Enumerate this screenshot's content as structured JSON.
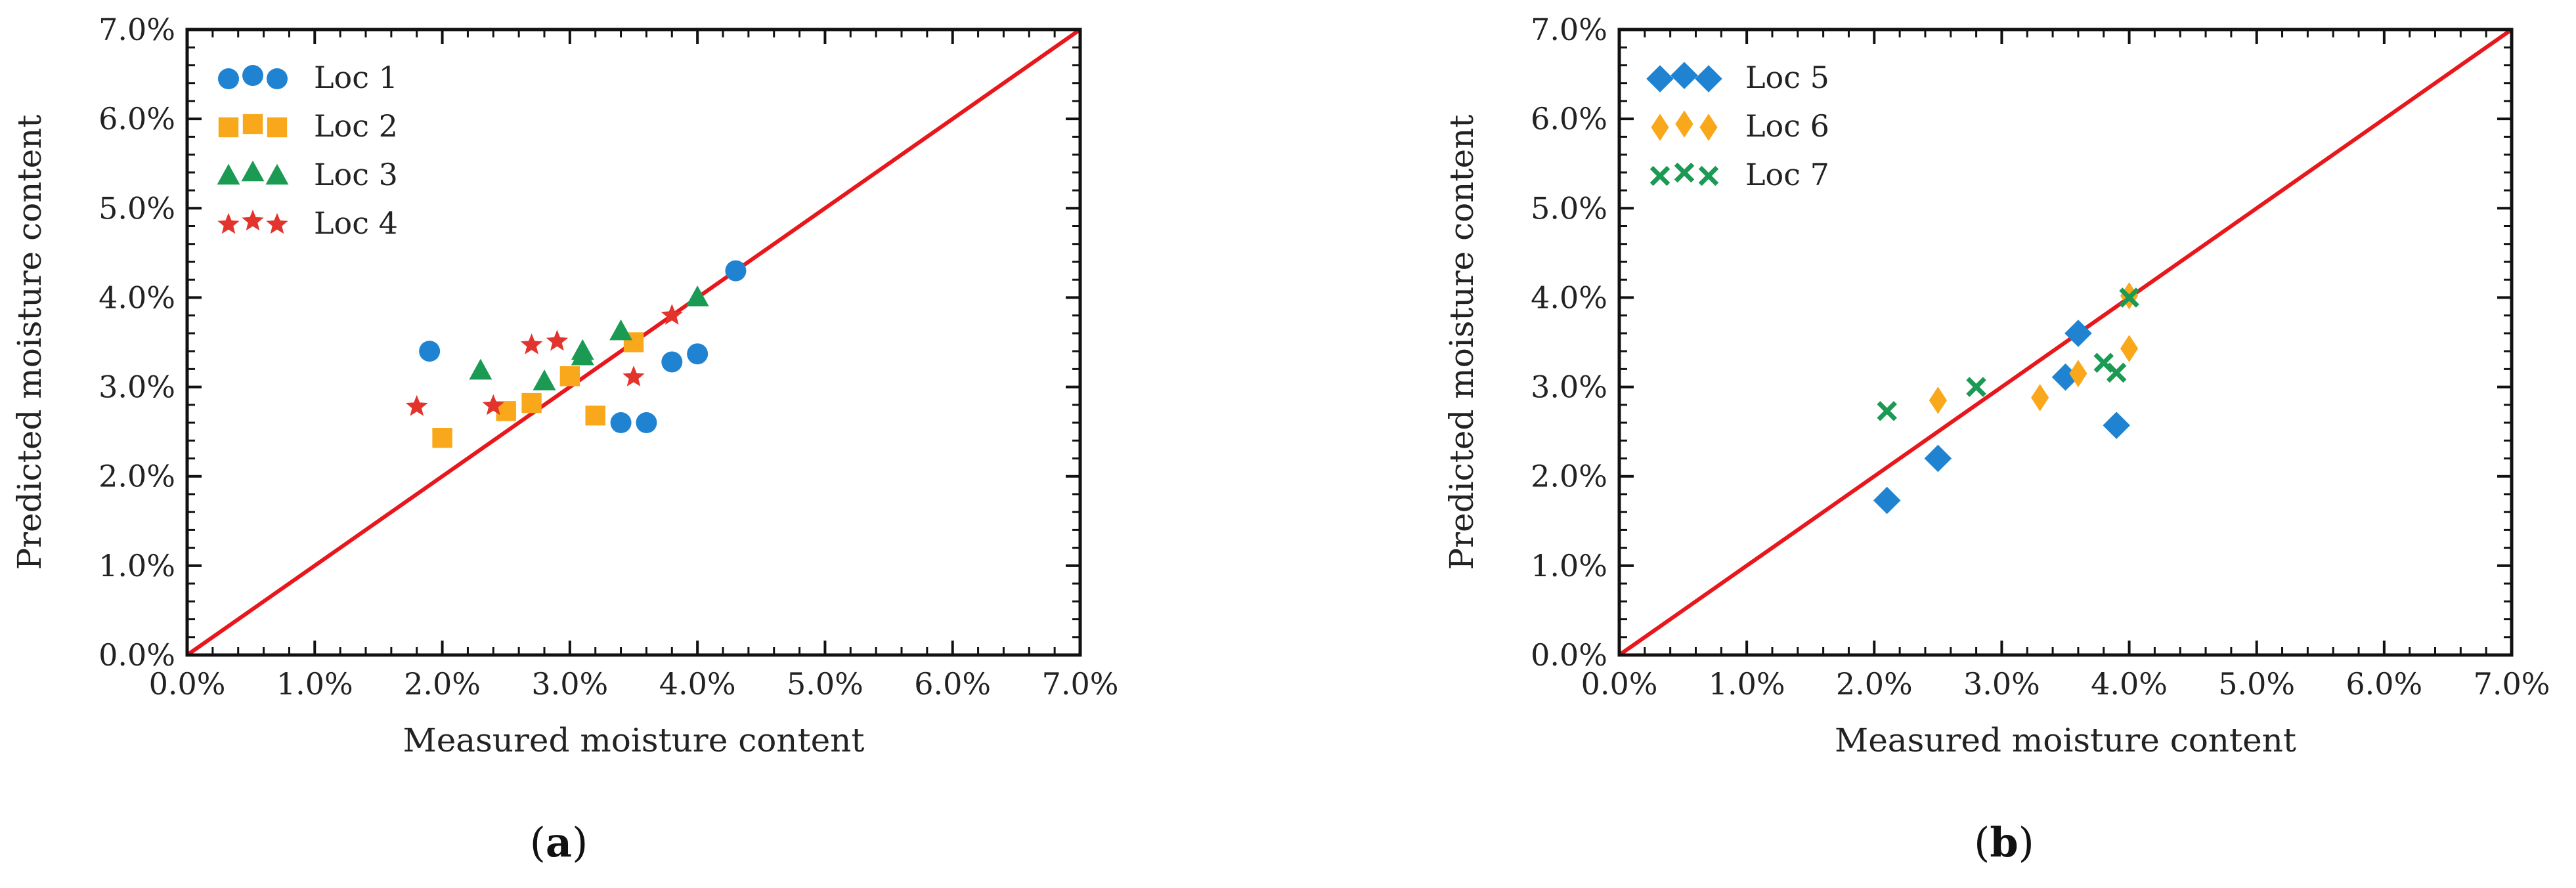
{
  "chart_data": [
    {
      "type": "scatter",
      "panel_label": "a",
      "xlabel": "Measured moisture content",
      "ylabel": "Predicted moisture content",
      "xlim": [
        0,
        0.07
      ],
      "ylim": [
        0,
        0.07
      ],
      "ticks": [
        0,
        0.01,
        0.02,
        0.03,
        0.04,
        0.05,
        0.06,
        0.07
      ],
      "tick_labels": [
        "0.0%",
        "1.0%",
        "2.0%",
        "3.0%",
        "4.0%",
        "5.0%",
        "6.0%",
        "7.0%"
      ],
      "reference_line": {
        "from": [
          0,
          0
        ],
        "to": [
          0.07,
          0.07
        ],
        "color": "#e8171c"
      },
      "legend_position": "top-left",
      "series": [
        {
          "name": "Loc 1",
          "marker": "circle",
          "color": "#1f83d2",
          "points": [
            [
              0.019,
              0.034
            ],
            [
              0.034,
              0.026
            ],
            [
              0.036,
              0.026
            ],
            [
              0.038,
              0.0328
            ],
            [
              0.04,
              0.0337
            ],
            [
              0.043,
              0.043
            ]
          ]
        },
        {
          "name": "Loc 2",
          "marker": "square",
          "color": "#f9a81b",
          "points": [
            [
              0.02,
              0.0243
            ],
            [
              0.025,
              0.0273
            ],
            [
              0.027,
              0.0282
            ],
            [
              0.03,
              0.0312
            ],
            [
              0.032,
              0.0268
            ],
            [
              0.035,
              0.035
            ]
          ]
        },
        {
          "name": "Loc 3",
          "marker": "triangle",
          "color": "#1b9a54",
          "points": [
            [
              0.023,
              0.0318
            ],
            [
              0.028,
              0.0306
            ],
            [
              0.031,
              0.0334
            ],
            [
              0.031,
              0.034
            ],
            [
              0.034,
              0.0362
            ],
            [
              0.04,
              0.04
            ]
          ]
        },
        {
          "name": "Loc 4",
          "marker": "star",
          "color": "#e2342c",
          "points": [
            [
              0.018,
              0.0278
            ],
            [
              0.024,
              0.0279
            ],
            [
              0.027,
              0.0347
            ],
            [
              0.029,
              0.0351
            ],
            [
              0.035,
              0.0311
            ],
            [
              0.038,
              0.038
            ]
          ]
        }
      ]
    },
    {
      "type": "scatter",
      "panel_label": "b",
      "xlabel": "Measured moisture content",
      "ylabel": "Predicted moisture content",
      "xlim": [
        0,
        0.07
      ],
      "ylim": [
        0,
        0.07
      ],
      "ticks": [
        0,
        0.01,
        0.02,
        0.03,
        0.04,
        0.05,
        0.06,
        0.07
      ],
      "tick_labels": [
        "0.0%",
        "1.0%",
        "2.0%",
        "3.0%",
        "4.0%",
        "5.0%",
        "6.0%",
        "7.0%"
      ],
      "reference_line": {
        "from": [
          0,
          0
        ],
        "to": [
          0.07,
          0.07
        ],
        "color": "#e8171c"
      },
      "legend_position": "top-left",
      "series": [
        {
          "name": "Loc 5",
          "marker": "diamond",
          "color": "#1f83d2",
          "points": [
            [
              0.021,
              0.0173
            ],
            [
              0.025,
              0.022
            ],
            [
              0.035,
              0.0311
            ],
            [
              0.036,
              0.036
            ],
            [
              0.039,
              0.0257
            ]
          ]
        },
        {
          "name": "Loc 6",
          "marker": "thin-diamond",
          "color": "#f9a81b",
          "points": [
            [
              0.025,
              0.0285
            ],
            [
              0.033,
              0.0288
            ],
            [
              0.036,
              0.0315
            ],
            [
              0.04,
              0.0343
            ],
            [
              0.04,
              0.0402
            ]
          ]
        },
        {
          "name": "Loc 7",
          "marker": "x",
          "color": "#1b9a54",
          "points": [
            [
              0.021,
              0.0273
            ],
            [
              0.028,
              0.03
            ],
            [
              0.038,
              0.0327
            ],
            [
              0.039,
              0.0316
            ],
            [
              0.04,
              0.04
            ]
          ]
        }
      ]
    }
  ]
}
